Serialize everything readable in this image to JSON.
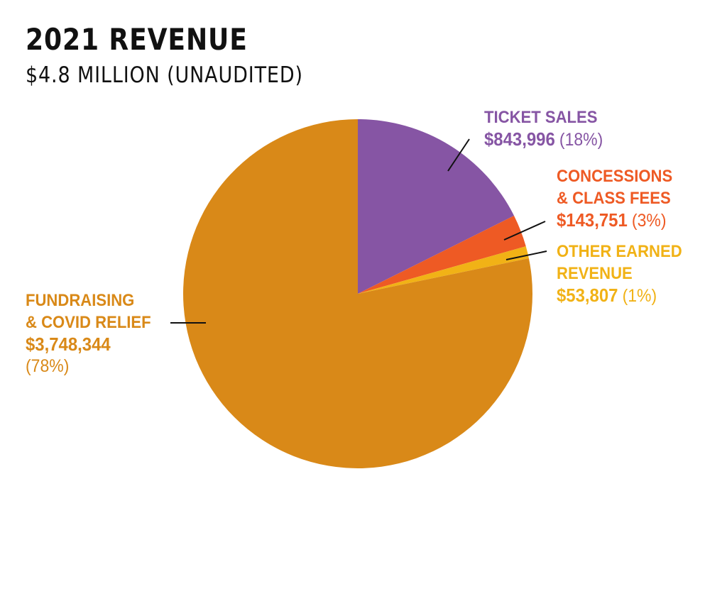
{
  "chart_data": {
    "type": "pie",
    "title": "2021 REVENUE",
    "subtitle": "$4.8 MILLION (UNAUDITED)",
    "total": 4789898,
    "slices": [
      {
        "label_lines": [
          "TICKET SALES"
        ],
        "amount_text": "$843,996",
        "percent_text": "(18%)",
        "value": 843996,
        "color": "#8655a4"
      },
      {
        "label_lines": [
          "CONCESSIONS",
          "& CLASS FEES"
        ],
        "amount_text": "$143,751",
        "percent_text": "(3%)",
        "value": 143751,
        "color": "#ee5a24"
      },
      {
        "label_lines": [
          "OTHER EARNED",
          "REVENUE"
        ],
        "amount_text": "$53,807",
        "percent_text": "(1%)",
        "value": 53807,
        "color": "#f1b216"
      },
      {
        "label_lines": [
          "FUNDRAISING",
          "& COVID RELIEF"
        ],
        "amount_text": "$3,748,344",
        "percent_text": "(78%)",
        "value": 3748344,
        "color": "#d98918"
      }
    ],
    "legend": "callout labels with leader lines",
    "start_angle": "12 o'clock, clockwise"
  }
}
